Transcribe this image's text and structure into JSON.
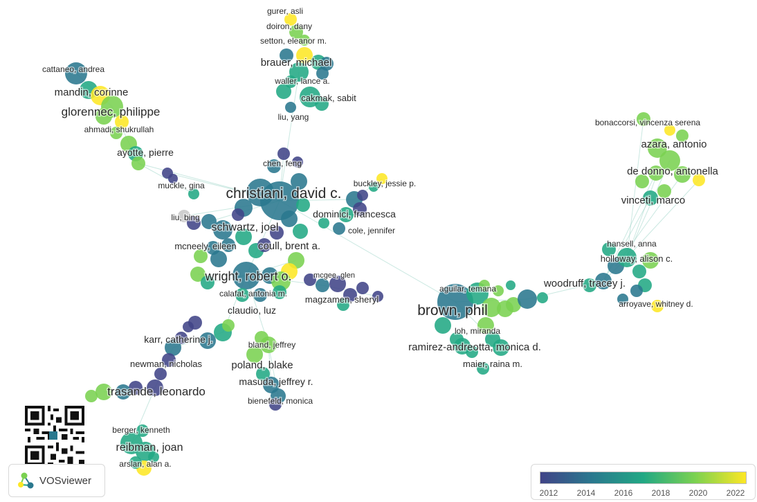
{
  "app": {
    "name": "VOSviewer"
  },
  "colors": {
    "scale": [
      "#414487",
      "#2a788e",
      "#22a884",
      "#7ad151",
      "#fde725"
    ],
    "edge": "#9fd6c8",
    "label": "#2a2a2a"
  },
  "legend": {
    "ticks": [
      "2012",
      "2014",
      "2016",
      "2018",
      "2020",
      "2022"
    ]
  },
  "labels": {
    "gurer": "gurer, asli",
    "doiron": "doiron, dany",
    "setton": "setton, eleanor m.",
    "brauer": "brauer, michael",
    "waller": "waller, lance a.",
    "cakmak": "cakmak, sabit",
    "liu_yang": "liu, yang",
    "cattaneo": "cattaneo, andrea",
    "mandin": "mandin, corinne",
    "glorennec": "glorennec, philippe",
    "ahmadi": "ahmadi, shukrullah",
    "ayotte": "ayotte, pierre",
    "muckle": "muckle, gina",
    "chen": "chen, feng",
    "christiani": "christiani, david c.",
    "buckley": "buckley, jessie p.",
    "dominici": "dominici, francesca",
    "cole": "cole, jennifer",
    "liu_bing": "liu, bing",
    "schwartz": "schwartz, joel",
    "mcneely": "mcneely, eileen",
    "coull": "coull, brent a.",
    "wright": "wright, robert o.",
    "mcgee": "mcgee, glen",
    "calafat": "calafat, antonia m.",
    "magzamen": "magzamen, sheryl",
    "claudio": "claudio, luz",
    "karr": "karr, catherine j.",
    "bland": "bland, jeffrey",
    "newman": "newman, nicholas",
    "poland": "poland, blake",
    "masuda": "masuda, jeffrey r.",
    "trasande": "trasande, leonardo",
    "bienefeld": "bienefeld, monica",
    "berger": "berger, kenneth",
    "reibman": "reibman, joan",
    "arslan": "arslan, alan a.",
    "bonaccorsi": "bonaccorsi, vincenza serena",
    "azara": "azara, antonio",
    "de_donno": "de donno, antonella",
    "vinceti": "vinceti, marco",
    "hansell": "hansell, anna",
    "holloway": "holloway, alison c.",
    "woodruff": "woodruff, tracey j.",
    "aguilar": "aguilar, temana",
    "brown": "brown, phil",
    "arroyave": "arroyave, whitney d.",
    "loh": "loh, miranda",
    "ramirez": "ramirez-andreotta, monica d.",
    "maier": "maier, raina m."
  }
}
